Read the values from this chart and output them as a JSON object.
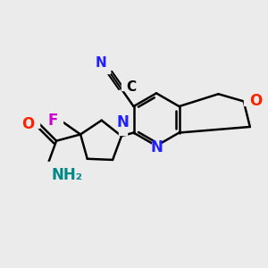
{
  "bg_color": "#ebebeb",
  "bond_color": "#000000",
  "bond_width": 1.8,
  "dbo": 0.06,
  "atom_colors": {
    "N": "#2020ff",
    "O": "#ff2000",
    "F": "#cc00cc",
    "NH2": "#008888"
  },
  "font_size": 11
}
